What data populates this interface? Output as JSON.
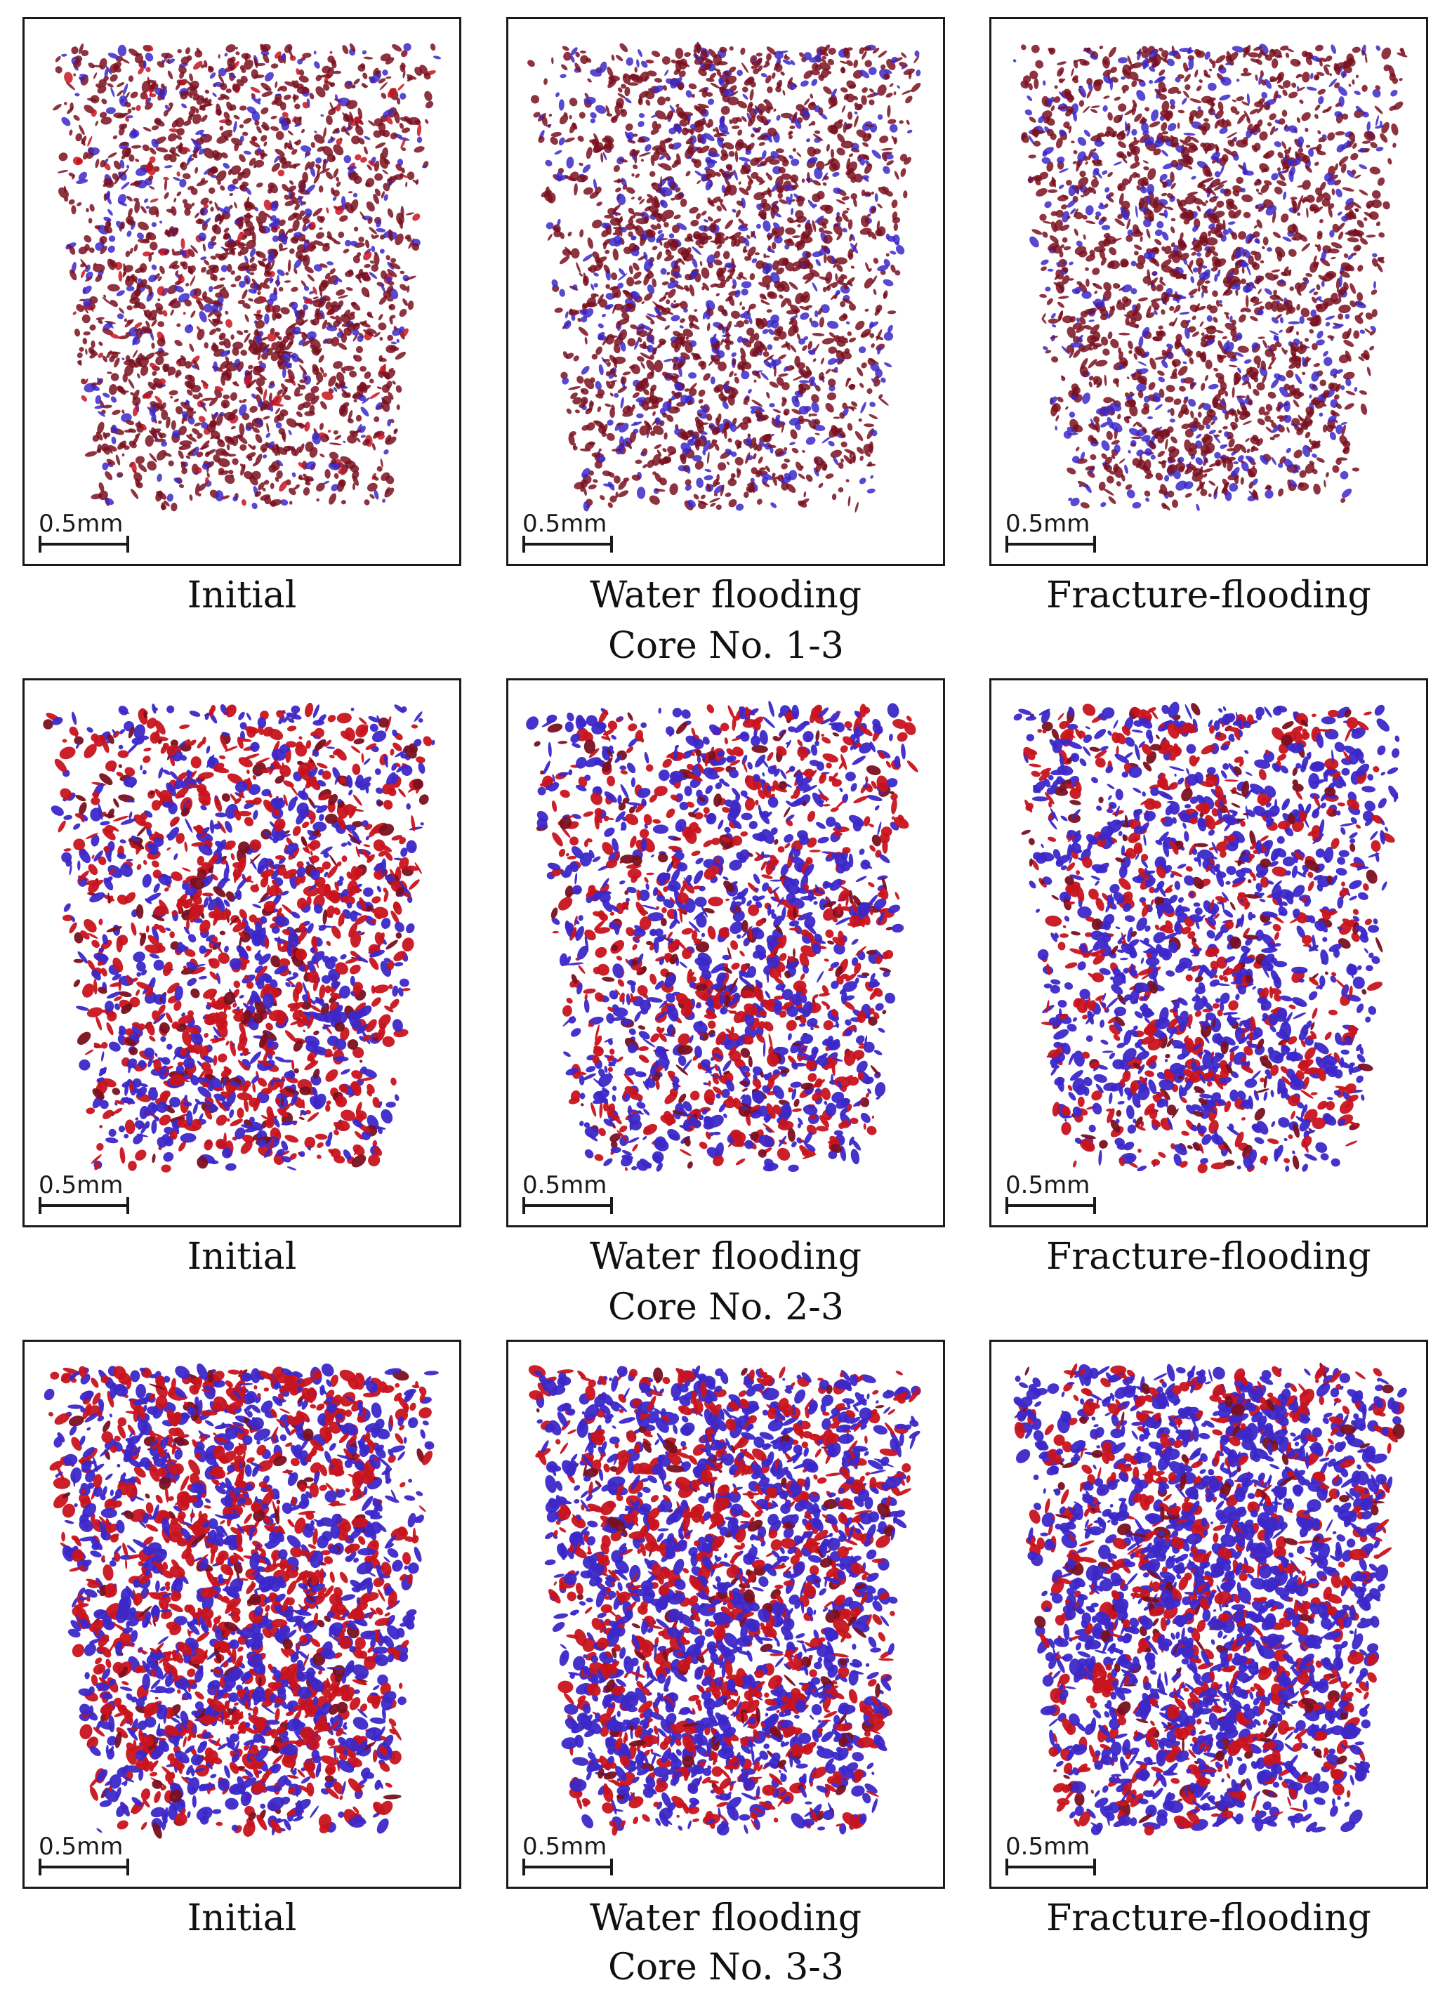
{
  "figure": {
    "scale_bar_label": "0.5mm",
    "colors": {
      "oil_phase": "#c8141e",
      "water_phase": "#3c28c8",
      "dark_red": "#7a1020",
      "frame": "#1a1a1a"
    },
    "rows": [
      {
        "core_label": "Core No. 1-3",
        "panels": [
          {
            "caption": "Initial"
          },
          {
            "caption": "Water flooding"
          },
          {
            "caption": "Fracture-flooding"
          }
        ]
      },
      {
        "core_label": "Core No. 2-3",
        "panels": [
          {
            "caption": "Initial"
          },
          {
            "caption": "Water flooding"
          },
          {
            "caption": "Fracture-flooding"
          }
        ]
      },
      {
        "core_label": "Core No. 3-3",
        "panels": [
          {
            "caption": "Initial"
          },
          {
            "caption": "Water flooding"
          },
          {
            "caption": "Fracture-flooding"
          }
        ]
      }
    ]
  }
}
